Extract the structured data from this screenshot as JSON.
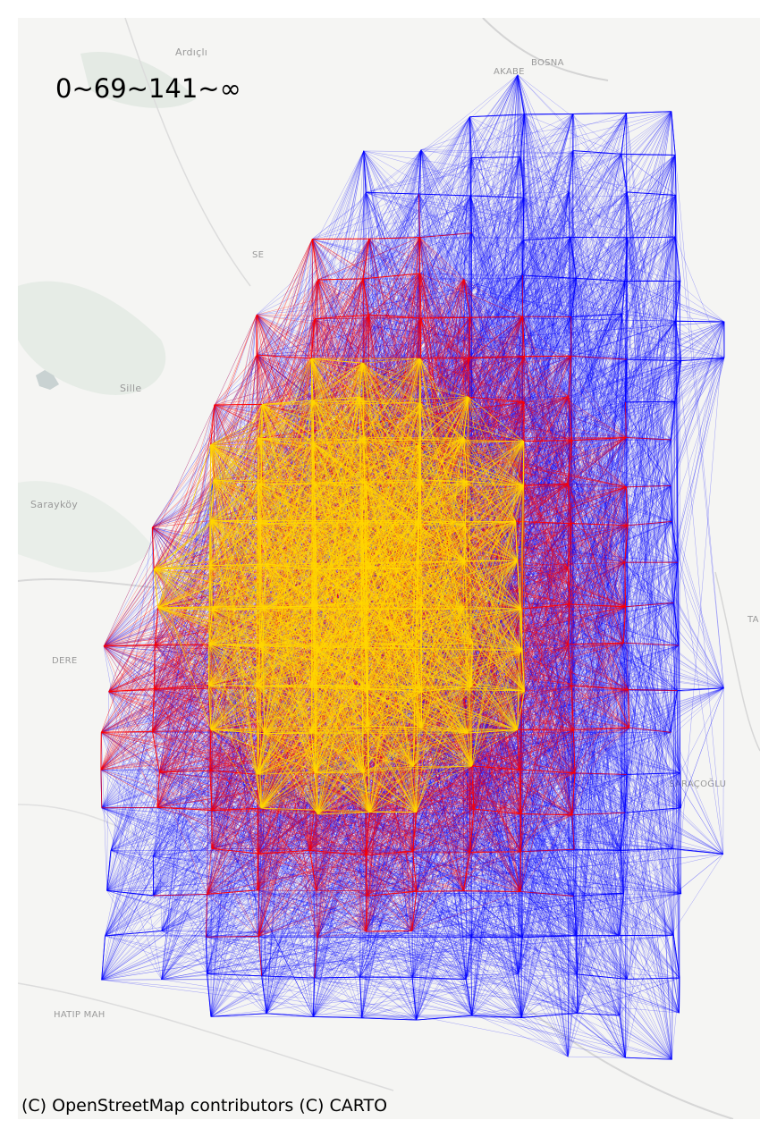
{
  "legend": {
    "text": "0~69~141~∞"
  },
  "attribution": "(C) OpenStreetMap contributors (C) CARTO",
  "places": {
    "ardicli": "Ardıçlı",
    "bosna": "BOSNA",
    "akabe": "AKABE",
    "sille": "Sille",
    "saraykoy": "Sarayköy",
    "dere": "DERE",
    "saracoglu": "SARAÇOĞLU",
    "hatip": "HATIP MAH",
    "se": "SE",
    "ta": "TA"
  },
  "colors": {
    "low_flow": "#0000ff",
    "mid_flow": "#ff0000",
    "high_flow": "#ffd700",
    "basemap_bg": "#f5f5f3",
    "basemap_green": "#e6ece6",
    "road": "#d8d8d8"
  },
  "flow_classes": [
    {
      "range": "0~69",
      "color": "#0000ff"
    },
    {
      "range": "69~141",
      "color": "#ff0000"
    },
    {
      "range": "141~∞",
      "color": "#ffd700"
    }
  ]
}
